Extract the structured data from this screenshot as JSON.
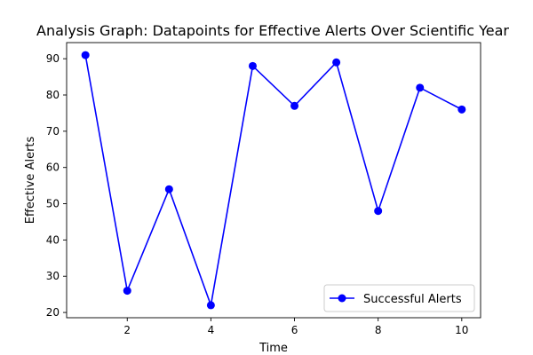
{
  "chart_data": {
    "type": "line",
    "title": "Analysis Graph: Datapoints for Effective Alerts Over Scientific Year",
    "xlabel": "Time",
    "ylabel": "Effective Alerts",
    "x": [
      1,
      2,
      3,
      4,
      5,
      6,
      7,
      8,
      9,
      10
    ],
    "series": [
      {
        "name": "Successful Alerts",
        "values": [
          91,
          26,
          54,
          22,
          88,
          77,
          89,
          48,
          82,
          76
        ],
        "color": "#0000ff",
        "marker": "circle"
      }
    ],
    "xlim": [
      0.55,
      10.45
    ],
    "ylim": [
      18.55,
      94.45
    ],
    "xticks": [
      2,
      4,
      6,
      8,
      10
    ],
    "yticks": [
      20,
      30,
      40,
      50,
      60,
      70,
      80,
      90
    ],
    "grid": false,
    "legend_position": "lower-right"
  }
}
